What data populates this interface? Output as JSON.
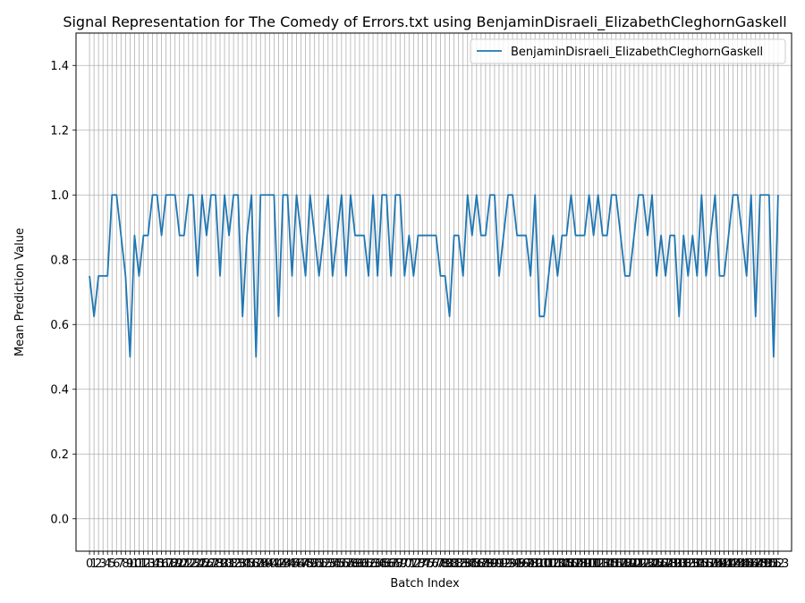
{
  "chart_data": {
    "type": "line",
    "title": "Signal Representation for The Comedy of Errors.txt using BenjaminDisraeli_ElizabethCleghornGaskell",
    "xlabel": "Batch Index",
    "ylabel": "Mean Prediction Value",
    "xlim": [
      -3,
      156
    ],
    "ylim": [
      -0.1,
      1.5
    ],
    "yticks": [
      0.0,
      0.2,
      0.4,
      0.6,
      0.8,
      1.0,
      1.2,
      1.4
    ],
    "xtick_count": 154,
    "grid": true,
    "legend_position": "top-right",
    "series": [
      {
        "name": "BenjaminDisraeli_ElizabethCleghornGaskell",
        "color": "#1f77b4",
        "x_start": 0,
        "values": [
          0.75,
          0.625,
          0.75,
          0.75,
          0.75,
          1.0,
          1.0,
          0.875,
          0.75,
          0.5,
          0.875,
          0.75,
          0.875,
          0.875,
          1.0,
          1.0,
          0.875,
          1.0,
          1.0,
          1.0,
          0.875,
          0.875,
          1.0,
          1.0,
          0.75,
          1.0,
          0.875,
          1.0,
          1.0,
          0.75,
          1.0,
          0.875,
          1.0,
          1.0,
          0.625,
          0.875,
          1.0,
          0.5,
          1.0,
          1.0,
          1.0,
          1.0,
          0.625,
          1.0,
          1.0,
          0.75,
          1.0,
          0.875,
          0.75,
          1.0,
          0.875,
          0.75,
          0.875,
          1.0,
          0.75,
          0.875,
          1.0,
          0.75,
          1.0,
          0.875,
          0.875,
          0.875,
          0.75,
          1.0,
          0.75,
          1.0,
          1.0,
          0.75,
          1.0,
          1.0,
          0.75,
          0.875,
          0.75,
          0.875,
          0.875,
          0.875,
          0.875,
          0.875,
          0.75,
          0.75,
          0.625,
          0.875,
          0.875,
          0.75,
          1.0,
          0.875,
          1.0,
          0.875,
          0.875,
          1.0,
          1.0,
          0.75,
          0.875,
          1.0,
          1.0,
          0.875,
          0.875,
          0.875,
          0.75,
          1.0,
          0.625,
          0.625,
          0.75,
          0.875,
          0.75,
          0.875,
          0.875,
          1.0,
          0.875,
          0.875,
          0.875,
          1.0,
          0.875,
          1.0,
          0.875,
          0.875,
          1.0,
          1.0,
          0.875,
          0.75,
          0.75,
          0.875,
          1.0,
          1.0,
          0.875,
          1.0,
          0.75,
          0.875,
          0.75,
          0.875,
          0.875,
          0.625,
          0.875,
          0.75,
          0.875,
          0.75,
          1.0,
          0.75,
          0.875,
          1.0,
          0.75,
          0.75,
          0.875,
          1.0,
          1.0,
          0.875,
          0.75,
          1.0,
          0.625,
          1.0,
          1.0,
          1.0,
          0.5,
          1.0
        ]
      }
    ]
  }
}
